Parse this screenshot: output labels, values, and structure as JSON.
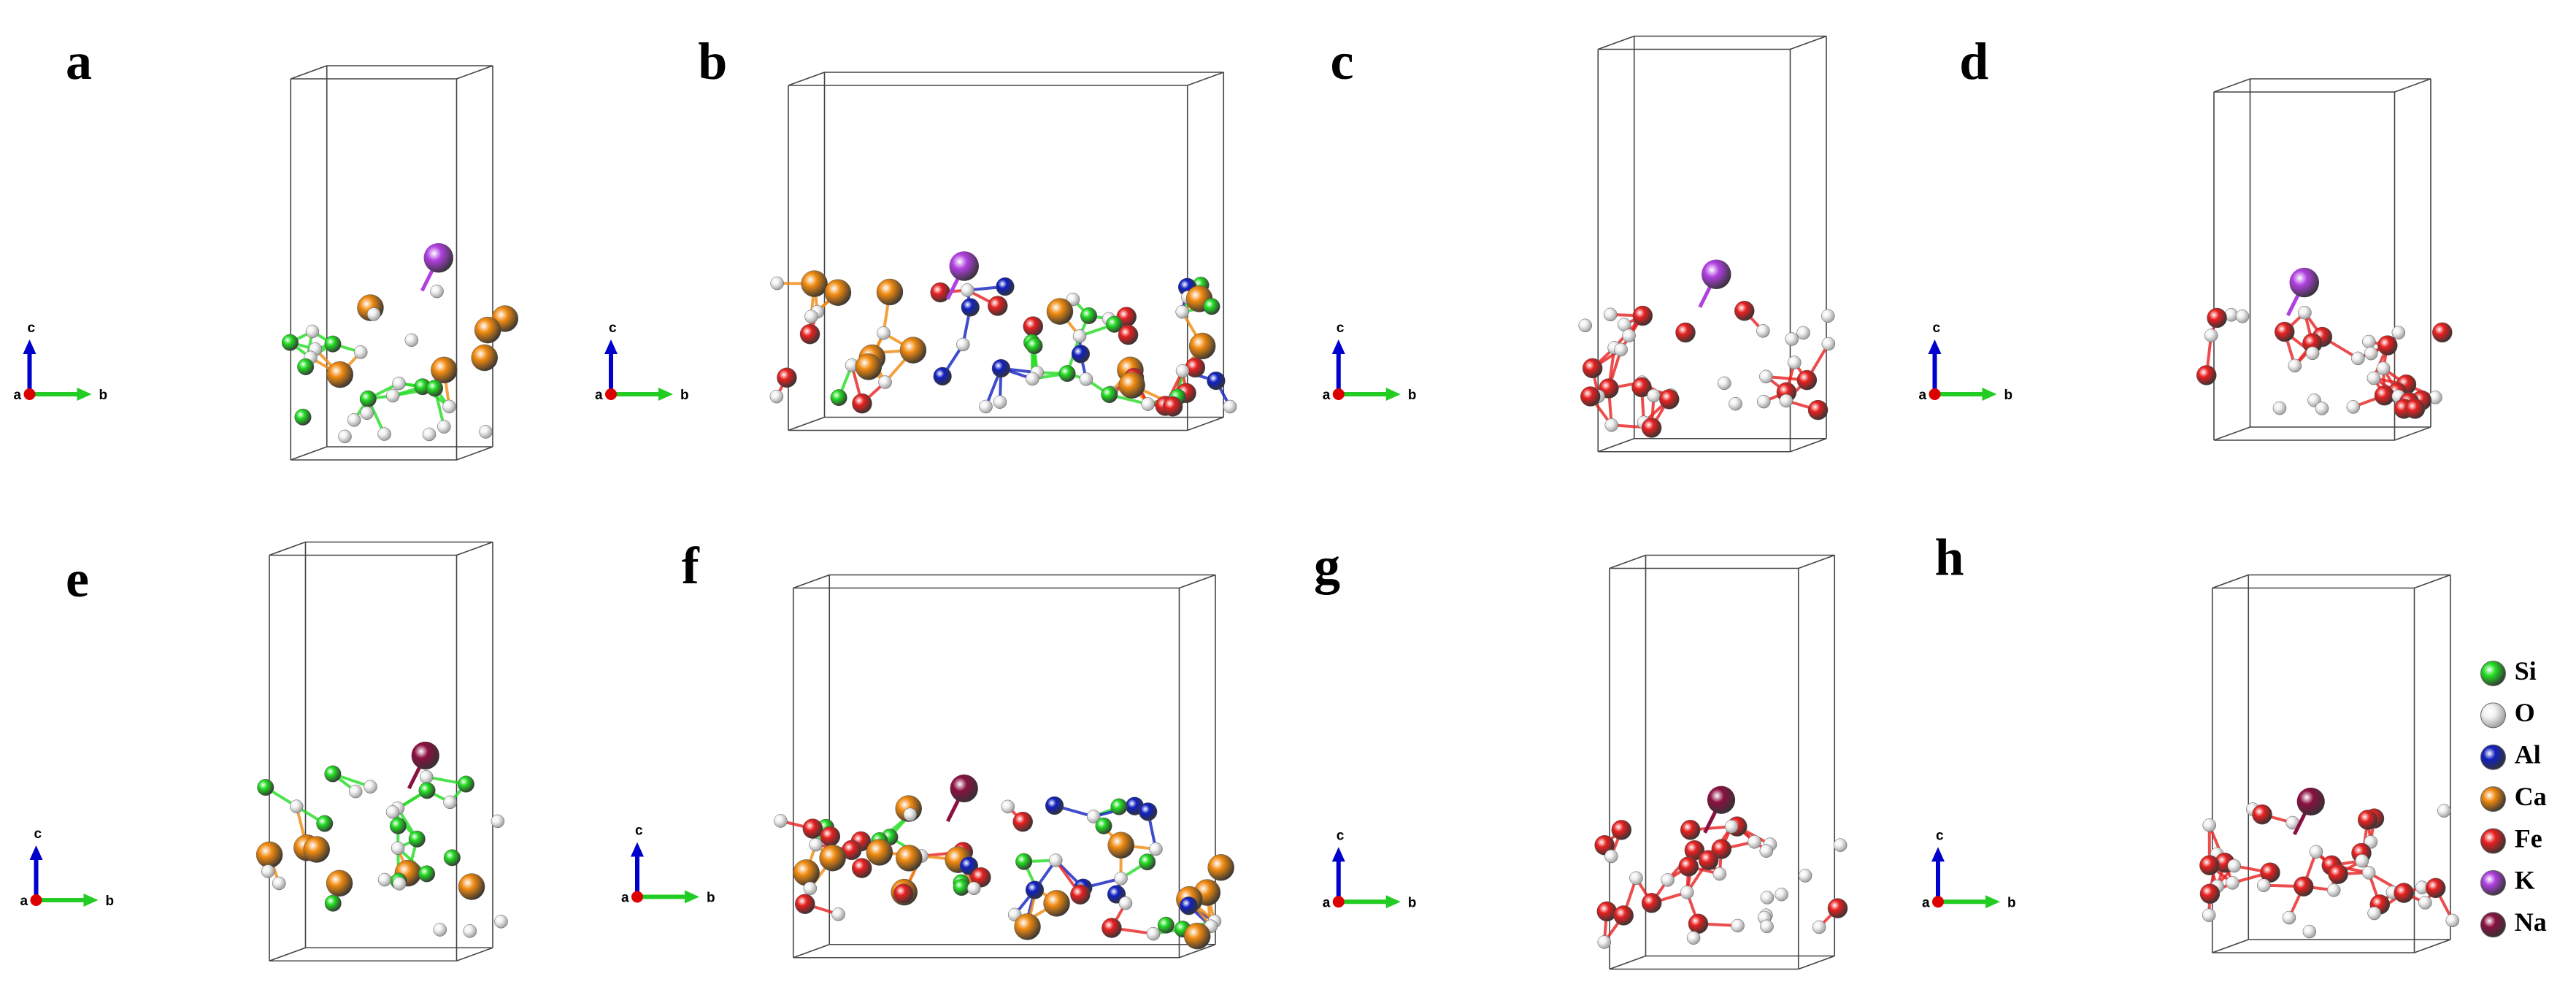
{
  "panels": [
    {
      "label": "a",
      "axes": [
        "c",
        "a",
        "b"
      ]
    },
    {
      "label": "b",
      "axes": [
        "c",
        "a",
        "b"
      ]
    },
    {
      "label": "c",
      "axes": [
        "c",
        "a",
        "b"
      ]
    },
    {
      "label": "d",
      "axes": [
        "c",
        "a",
        "b"
      ]
    },
    {
      "label": "e",
      "axes": [
        "c",
        "a",
        "b"
      ]
    },
    {
      "label": "f",
      "axes": [
        "c",
        "a",
        "b"
      ]
    },
    {
      "label": "g",
      "axes": [
        "c",
        "a",
        "b"
      ]
    },
    {
      "label": "h",
      "axes": [
        "c",
        "a",
        "b"
      ]
    }
  ],
  "legend": [
    {
      "name": "Si",
      "color": "#22dd22"
    },
    {
      "name": "O",
      "color": "#f2f2f2"
    },
    {
      "name": "Al",
      "color": "#1020c0"
    },
    {
      "name": "Ca",
      "color": "#f08a10"
    },
    {
      "name": "Fe",
      "color": "#e82020"
    },
    {
      "name": "K",
      "color": "#b040e0"
    },
    {
      "name": "Na",
      "color": "#8a1040"
    }
  ]
}
